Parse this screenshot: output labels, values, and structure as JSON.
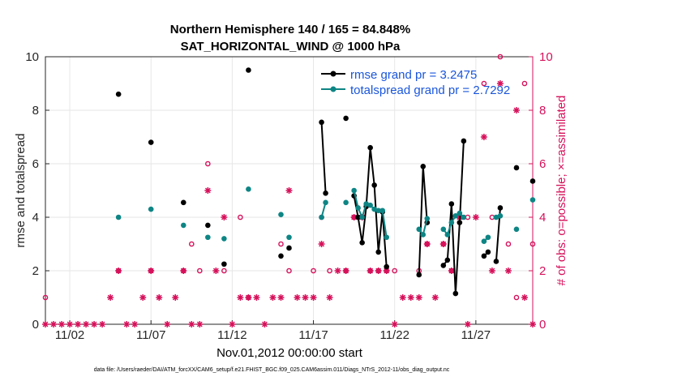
{
  "chart_data": {
    "type": "line",
    "title": "Northern Hemisphere 140 / 165 = 84.848%",
    "subtitle": "SAT_HORIZONTAL_WIND @ 1000 hPa",
    "xlabel": "Nov.01,2012 00:00:00 start",
    "ylabel": "rmse and totalspread",
    "y2label": "# of obs: o=possible; ×=assimilated",
    "footnote": "data file: /Users/raeder/DAI/ATM_forcXX/CAM6_setup/f.e21.FHIST_BGC.f09_025.CAM6assim.011/Diags_NTrS_2012-11/obs_diag_output.nc",
    "xlim": [
      0.5,
      30.5
    ],
    "ylim": [
      0,
      10
    ],
    "y2lim": [
      0,
      10
    ],
    "xticks": [
      2,
      7,
      12,
      17,
      22,
      27
    ],
    "xticklabels": [
      "11/02",
      "11/07",
      "11/12",
      "11/17",
      "11/22",
      "11/27"
    ],
    "yticks": [
      0,
      2,
      4,
      6,
      8,
      10
    ],
    "y2ticks": [
      0,
      2,
      4,
      6,
      8,
      10
    ],
    "grid": true,
    "colors": {
      "rmse": "#000000",
      "totalspread": "#0e8585",
      "obs": "#d6105a",
      "legend_text": "#1a56db"
    },
    "series": [
      {
        "name": "rmse grand pr = 3.2475",
        "points": [
          [
            5,
            8.6
          ],
          [
            7,
            6.8
          ],
          [
            9,
            4.55
          ],
          [
            10.5,
            3.7
          ],
          [
            11.5,
            2.25
          ],
          [
            13,
            9.5
          ],
          [
            15,
            2.55
          ],
          [
            15.5,
            2.85
          ],
          [
            17.5,
            7.55
          ],
          [
            17.75,
            4.9
          ],
          [
            19,
            7.7
          ],
          [
            19.5,
            4.8
          ],
          [
            19.75,
            4.0
          ],
          [
            20,
            3.05
          ],
          [
            20.25,
            4.4
          ],
          [
            20.5,
            6.6
          ],
          [
            20.75,
            5.2
          ],
          [
            21,
            2.7
          ],
          [
            21.25,
            4.2
          ],
          [
            21.5,
            2.15
          ],
          [
            23.5,
            1.85
          ],
          [
            23.75,
            5.9
          ],
          [
            24,
            3.8
          ],
          [
            25,
            2.2
          ],
          [
            25.25,
            2.4
          ],
          [
            25.5,
            4.5
          ],
          [
            25.75,
            1.15
          ],
          [
            26,
            3.8
          ],
          [
            26.25,
            6.85
          ],
          [
            27.5,
            2.55
          ],
          [
            27.75,
            2.7
          ],
          [
            28.25,
            2.35
          ],
          [
            28.5,
            4.35
          ],
          [
            29.5,
            5.85
          ],
          [
            30.5,
            5.35
          ]
        ],
        "connected": [
          [
            17.5,
            17.75
          ],
          [
            19.5,
            21.5
          ],
          [
            23.5,
            24
          ],
          [
            25,
            26.25
          ],
          [
            27.5,
            27.75
          ],
          [
            28.25,
            28.5
          ]
        ]
      },
      {
        "name": "totalspread grand pr = 2.7292",
        "points": [
          [
            5,
            4.0
          ],
          [
            7,
            4.3
          ],
          [
            9,
            3.7
          ],
          [
            10.5,
            3.25
          ],
          [
            11.5,
            3.2
          ],
          [
            13,
            5.05
          ],
          [
            15,
            4.1
          ],
          [
            15.5,
            3.25
          ],
          [
            17.5,
            4.0
          ],
          [
            17.75,
            4.55
          ],
          [
            19,
            4.55
          ],
          [
            19.5,
            5.0
          ],
          [
            19.75,
            4.35
          ],
          [
            20,
            4.0
          ],
          [
            20.25,
            4.5
          ],
          [
            20.5,
            4.45
          ],
          [
            20.75,
            4.3
          ],
          [
            21,
            4.25
          ],
          [
            21.25,
            4.25
          ],
          [
            21.5,
            3.25
          ],
          [
            23.5,
            3.55
          ],
          [
            23.75,
            3.35
          ],
          [
            24,
            3.95
          ],
          [
            25,
            3.55
          ],
          [
            25.25,
            3.35
          ],
          [
            25.5,
            3.8
          ],
          [
            25.75,
            4.05
          ],
          [
            26,
            4.15
          ],
          [
            26.25,
            4.0
          ],
          [
            27.5,
            3.1
          ],
          [
            27.75,
            3.25
          ],
          [
            28.25,
            4.0
          ],
          [
            28.5,
            4.05
          ],
          [
            29.5,
            3.55
          ],
          [
            30.5,
            4.65
          ]
        ],
        "connected": [
          [
            17.5,
            17.75
          ],
          [
            19.5,
            21.5
          ],
          [
            23.5,
            24
          ],
          [
            25,
            26.25
          ],
          [
            27.5,
            27.75
          ],
          [
            28.25,
            28.5
          ]
        ]
      },
      {
        "name": "obs possible",
        "marker": "o",
        "axis": "right",
        "points": [
          [
            0.5,
            1
          ],
          [
            5,
            2
          ],
          [
            7,
            2
          ],
          [
            9,
            2
          ],
          [
            9.5,
            3
          ],
          [
            10,
            2
          ],
          [
            10.5,
            6
          ],
          [
            11.5,
            2
          ],
          [
            12.5,
            4
          ],
          [
            13,
            1
          ],
          [
            15,
            3
          ],
          [
            15.5,
            2
          ],
          [
            17,
            2
          ],
          [
            17.5,
            4
          ],
          [
            18,
            2
          ],
          [
            19,
            2
          ],
          [
            19.5,
            4
          ],
          [
            20,
            4
          ],
          [
            20.5,
            2
          ],
          [
            21,
            2
          ],
          [
            21.5,
            2
          ],
          [
            22,
            2
          ],
          [
            23.5,
            2
          ],
          [
            24,
            3
          ],
          [
            25,
            3
          ],
          [
            25.5,
            2
          ],
          [
            26,
            4
          ],
          [
            26.5,
            4
          ],
          [
            27.5,
            9
          ],
          [
            28,
            4
          ],
          [
            28.5,
            10
          ],
          [
            29,
            3
          ],
          [
            29.5,
            1
          ],
          [
            30,
            9
          ],
          [
            30.5,
            3
          ]
        ]
      },
      {
        "name": "obs assimilated",
        "marker": "x",
        "axis": "right",
        "points": [
          [
            0.5,
            0
          ],
          [
            1,
            0
          ],
          [
            1.5,
            0
          ],
          [
            2,
            0
          ],
          [
            2.5,
            0
          ],
          [
            3,
            0
          ],
          [
            3.5,
            0
          ],
          [
            4,
            0
          ],
          [
            4.5,
            1
          ],
          [
            5,
            2
          ],
          [
            5.5,
            0
          ],
          [
            6,
            0
          ],
          [
            6.5,
            1
          ],
          [
            7,
            2
          ],
          [
            7.5,
            1
          ],
          [
            8,
            0
          ],
          [
            8.5,
            1
          ],
          [
            9,
            2
          ],
          [
            9.5,
            0
          ],
          [
            10,
            0
          ],
          [
            10.5,
            5
          ],
          [
            11,
            2
          ],
          [
            11.5,
            4
          ],
          [
            12,
            0
          ],
          [
            12.5,
            1
          ],
          [
            13,
            1
          ],
          [
            13.5,
            1
          ],
          [
            14,
            0
          ],
          [
            14.5,
            1
          ],
          [
            15,
            1
          ],
          [
            15.5,
            5
          ],
          [
            16,
            1
          ],
          [
            16.5,
            1
          ],
          [
            17,
            1
          ],
          [
            17.5,
            3
          ],
          [
            18,
            1
          ],
          [
            18.5,
            2
          ],
          [
            19,
            2
          ],
          [
            19.5,
            4
          ],
          [
            20,
            4
          ],
          [
            20.5,
            2
          ],
          [
            21,
            2
          ],
          [
            21.5,
            2
          ],
          [
            22,
            0
          ],
          [
            22.5,
            1
          ],
          [
            23,
            1
          ],
          [
            23.5,
            1
          ],
          [
            24,
            3
          ],
          [
            24.5,
            1
          ],
          [
            25,
            3
          ],
          [
            25.5,
            2
          ],
          [
            26,
            4
          ],
          [
            26.5,
            0
          ],
          [
            27,
            4
          ],
          [
            27.5,
            7
          ],
          [
            28,
            2
          ],
          [
            28.5,
            9
          ],
          [
            29,
            2
          ],
          [
            29.5,
            8
          ],
          [
            30,
            1
          ],
          [
            30.5,
            0
          ]
        ]
      }
    ]
  }
}
